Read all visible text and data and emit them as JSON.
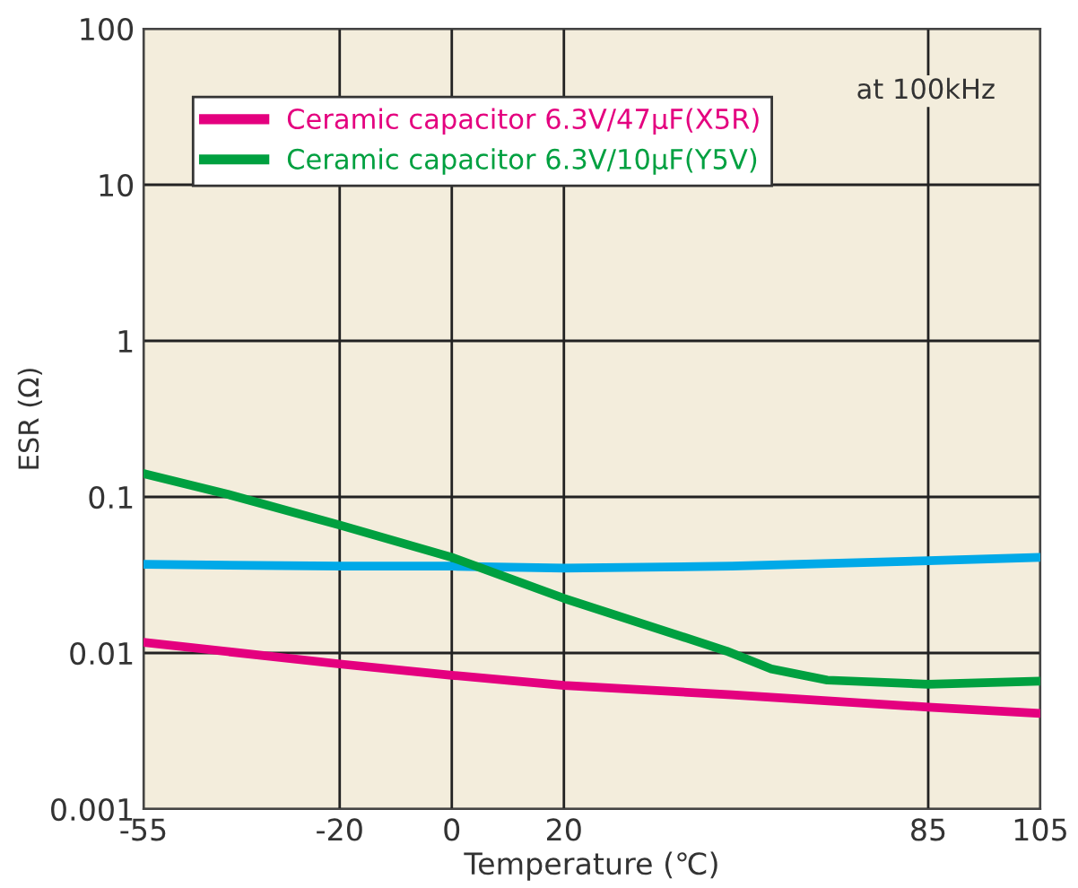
{
  "chart_data": {
    "type": "line",
    "xlabel": "Temperature (℃)",
    "ylabel": "ESR (Ω)",
    "annotations": [
      "at 100kHz"
    ],
    "xlim": [
      -55,
      105
    ],
    "xticks": [
      -55,
      -20,
      0,
      20,
      85,
      105
    ],
    "ylim": [
      0.001,
      100
    ],
    "yticks": [
      0.001,
      0.01,
      0.1,
      1,
      10,
      100
    ],
    "log": "y",
    "grid": true,
    "legend": "top left",
    "line_style": "solid",
    "marker": "none",
    "series": [
      {
        "color": "#00a9e8",
        "x": [
          -55,
          -20,
          0,
          20,
          50,
          85,
          105
        ],
        "values": [
          0.037,
          0.036,
          0.036,
          0.035,
          0.036,
          0.039,
          0.041
        ]
      },
      {
        "name": "Ceramic capacitor 6.3V/47μF(X5R)",
        "color": "#e4007f",
        "x": [
          -55,
          -20,
          0,
          20,
          50,
          85,
          105
        ],
        "values": [
          0.0117,
          0.0085,
          0.0072,
          0.0062,
          0.0054,
          0.0045,
          0.0041
        ]
      },
      {
        "name": "Ceramic capacitor 6.3V/10μF(Y5V)",
        "color": "#00a040",
        "x": [
          -55,
          -40,
          -20,
          0,
          20,
          49,
          57,
          67,
          85,
          105
        ],
        "values": [
          0.141,
          0.104,
          0.066,
          0.041,
          0.0224,
          0.0103,
          0.0079,
          0.0067,
          0.0063,
          0.0066
        ]
      }
    ]
  }
}
